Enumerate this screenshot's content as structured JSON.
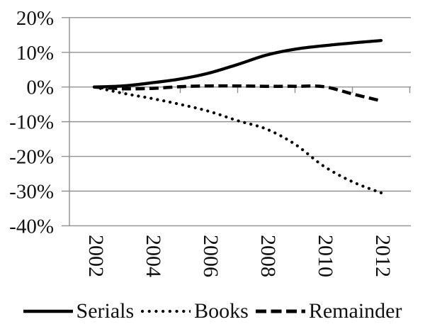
{
  "chart_data": {
    "type": "line",
    "title": "",
    "x": [
      2002,
      2003,
      2004,
      2005,
      2006,
      2007,
      2008,
      2009,
      2010,
      2011,
      2012
    ],
    "x_axis_tick_labels": [
      "2002",
      "2004",
      "2006",
      "2008",
      "2010",
      "2012"
    ],
    "y_axis": {
      "ticks": [
        20,
        10,
        0,
        -10,
        -20,
        -30,
        -40
      ],
      "tick_labels": [
        "20%",
        "10%",
        "0%",
        "-10%",
        "-20%",
        "-30%",
        "-40%"
      ],
      "ylim": [
        -40,
        20
      ],
      "unit": "%"
    },
    "grid": true,
    "legend_position": "bottom",
    "series": [
      {
        "name": "Serials",
        "style": "solid",
        "values": [
          0,
          0.3,
          1.2,
          2.3,
          4.0,
          6.5,
          9.2,
          10.9,
          11.9,
          12.7,
          13.4
        ]
      },
      {
        "name": "Books",
        "style": "dotted",
        "values": [
          0,
          -1.8,
          -3.3,
          -5.0,
          -7.0,
          -9.7,
          -12.1,
          -16.5,
          -22.8,
          -27.3,
          -30.5
        ]
      },
      {
        "name": "Remainder",
        "style": "dashed",
        "values": [
          0,
          -0.5,
          -0.4,
          0.1,
          0.3,
          0.3,
          0.2,
          0.2,
          0.1,
          -2.0,
          -4.0
        ]
      }
    ]
  },
  "legend": {
    "items": [
      {
        "label": "Serials"
      },
      {
        "label": "Books"
      },
      {
        "label": "Remainder"
      }
    ]
  },
  "colors": {
    "line": "#000000",
    "grid": "#909090",
    "axis": "#909090",
    "text": "#111111",
    "background": "#ffffff"
  }
}
